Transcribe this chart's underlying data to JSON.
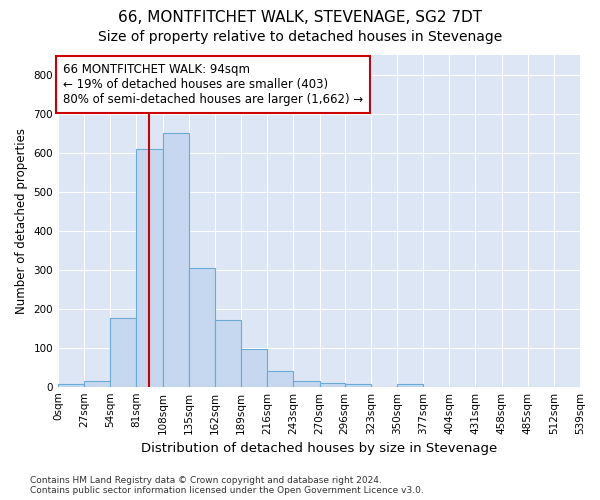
{
  "title": "66, MONTFITCHET WALK, STEVENAGE, SG2 7DT",
  "subtitle": "Size of property relative to detached houses in Stevenage",
  "xlabel": "Distribution of detached houses by size in Stevenage",
  "ylabel": "Number of detached properties",
  "bin_edges": [
    0,
    27,
    54,
    81,
    108,
    135,
    162,
    189,
    216,
    243,
    270,
    296,
    323,
    350,
    377,
    404,
    431,
    458,
    485,
    512,
    539
  ],
  "bar_heights": [
    8,
    14,
    175,
    610,
    650,
    305,
    172,
    97,
    40,
    15,
    10,
    8,
    0,
    8,
    0,
    0,
    0,
    0,
    0,
    0
  ],
  "bar_color": "#c5d8f0",
  "bar_edge_color": "#6aaad4",
  "property_size": 94,
  "property_line_color": "#cc0000",
  "annotation_text": "66 MONTFITCHET WALK: 94sqm\n← 19% of detached houses are smaller (403)\n80% of semi-detached houses are larger (1,662) →",
  "annotation_box_color": "#ffffff",
  "annotation_box_edge_color": "#cc0000",
  "ylim": [
    0,
    850
  ],
  "yticks": [
    0,
    100,
    200,
    300,
    400,
    500,
    600,
    700,
    800
  ],
  "background_color": "#dce6f5",
  "footer_text": "Contains HM Land Registry data © Crown copyright and database right 2024.\nContains public sector information licensed under the Open Government Licence v3.0.",
  "title_fontsize": 11,
  "subtitle_fontsize": 10,
  "xlabel_fontsize": 9.5,
  "ylabel_fontsize": 8.5,
  "tick_fontsize": 7.5,
  "annotation_fontsize": 8.5,
  "footer_fontsize": 6.5
}
